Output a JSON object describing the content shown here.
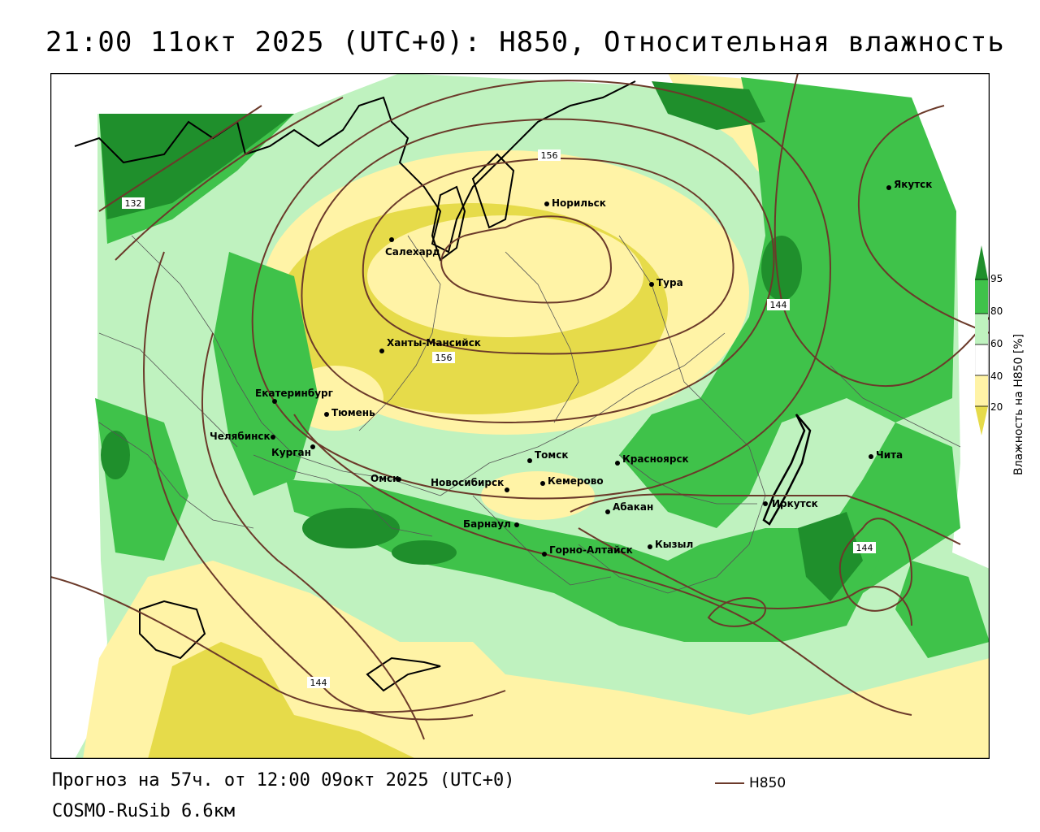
{
  "header": {
    "title": "21:00 11окт 2025 (UTC+0): H850, Относительная влажность"
  },
  "map": {
    "cities": [
      {
        "name": "Норильск"
      },
      {
        "name": "Салехард"
      },
      {
        "name": "Тура"
      },
      {
        "name": "Якутск"
      },
      {
        "name": "Ханты-Мансийск"
      },
      {
        "name": "Екатеринбург"
      },
      {
        "name": "Тюмень"
      },
      {
        "name": "Челябинск"
      },
      {
        "name": "Курган"
      },
      {
        "name": "Омск"
      },
      {
        "name": "Новосибирск"
      },
      {
        "name": "Томск"
      },
      {
        "name": "Кемерово"
      },
      {
        "name": "Красноярск"
      },
      {
        "name": "Барнаул"
      },
      {
        "name": "Абакан"
      },
      {
        "name": "Горно-Алтайск"
      },
      {
        "name": "Кызыл"
      },
      {
        "name": "Иркутск"
      },
      {
        "name": "Чита"
      }
    ],
    "contour_labels": [
      "132",
      "156",
      "156",
      "144",
      "144",
      "144"
    ],
    "colors": {
      "contour": "#6b3a2a",
      "humidity_95": "#1f8f2c",
      "humidity_80": "#3fc24a",
      "humidity_60": "#bff2bf",
      "humidity_40": "#ffffff",
      "humidity_20": "#fff3a6",
      "humidity_0": "#e6db4a"
    }
  },
  "legend": {
    "title": "Влажность на H850 [%]",
    "ticks": [
      "95",
      "80",
      "60",
      "40",
      "20"
    ]
  },
  "footer": {
    "forecast": "Прогноз на 57ч. от 12:00 09окт 2025 (UTC+0)",
    "model": "COSMO-RuSib 6.6км",
    "line_legend": "H850"
  }
}
